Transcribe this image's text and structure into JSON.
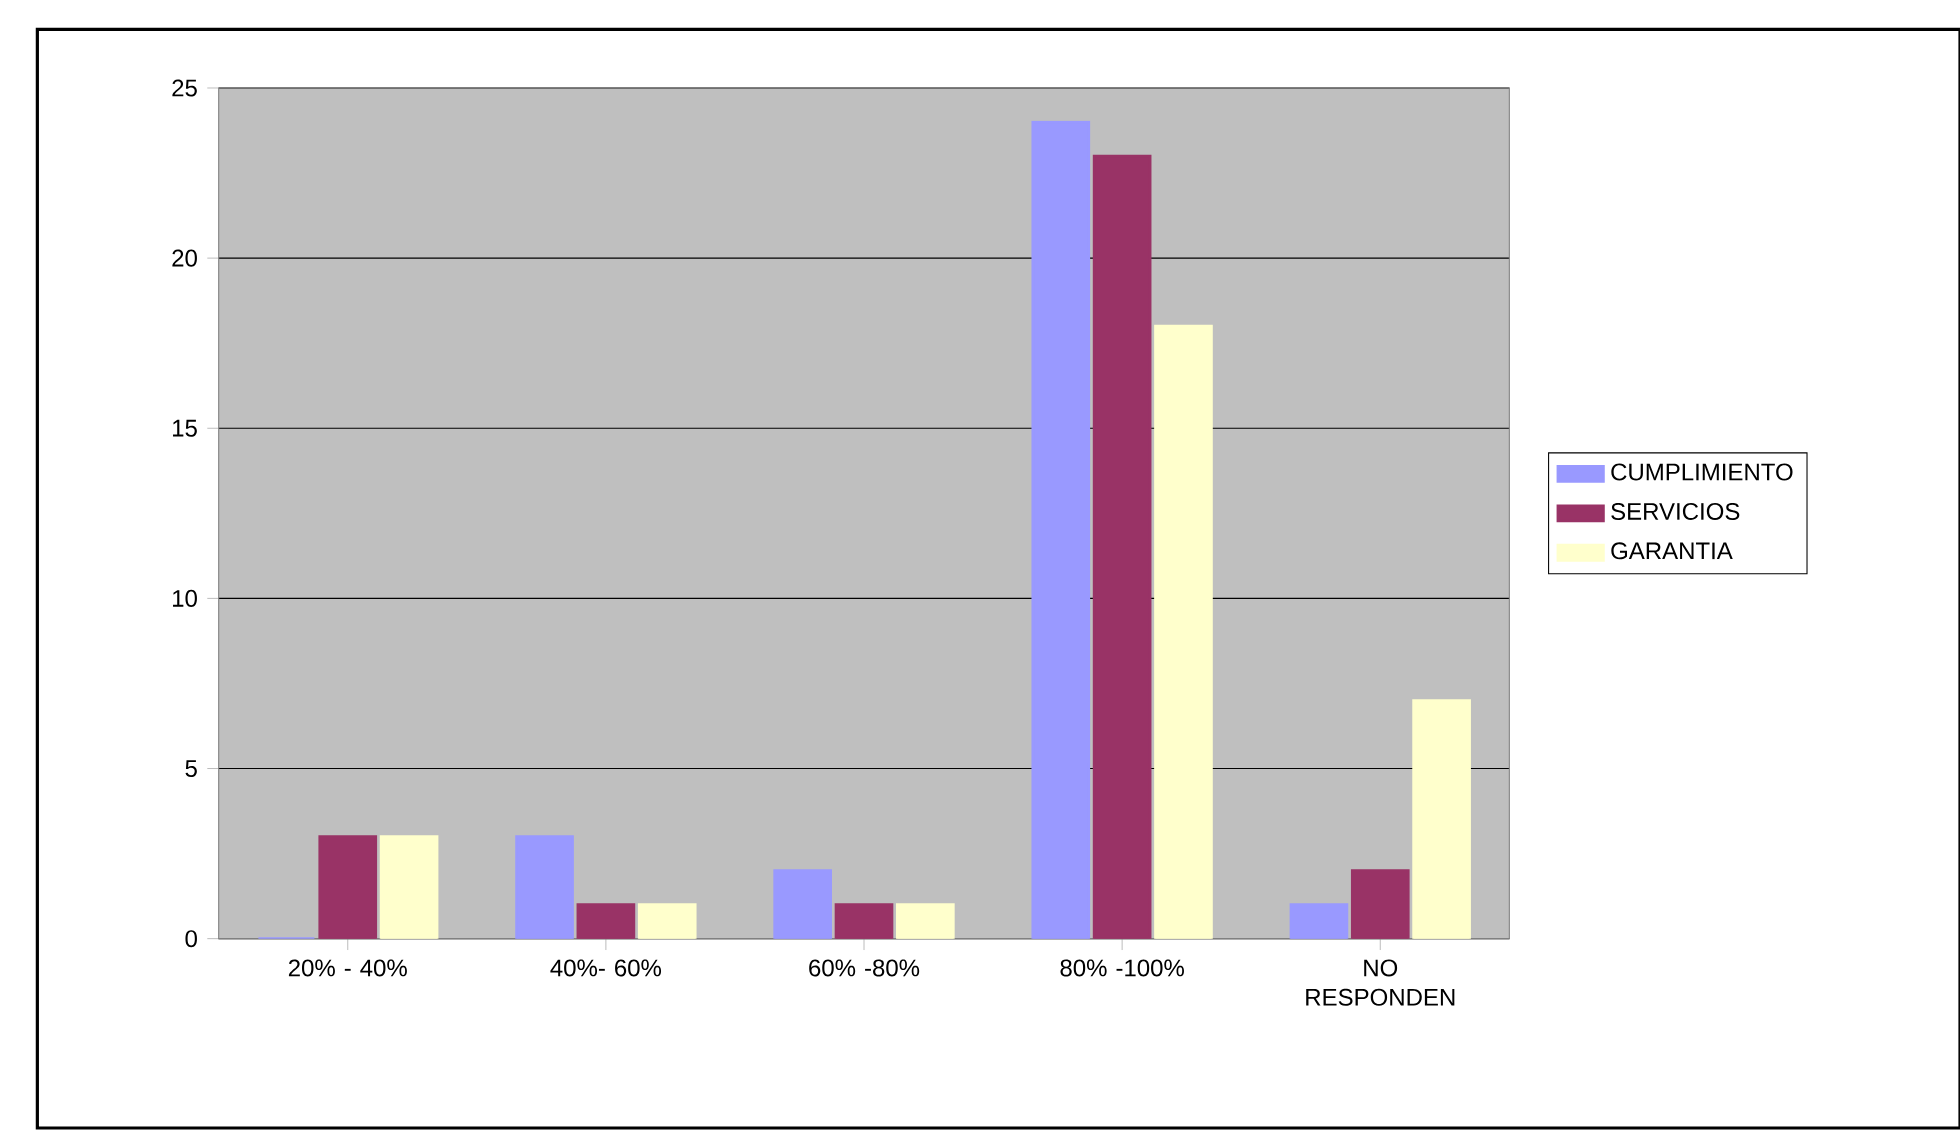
{
  "chart_data": {
    "type": "bar",
    "categories": [
      "20% - 40%",
      "40%- 60%",
      "60% -80%",
      "80% -100%",
      "NO RESPONDEN"
    ],
    "series": [
      {
        "name": "CUMPLIMIENTO",
        "color": "#9999ff",
        "values": [
          0,
          3,
          2,
          24,
          1
        ]
      },
      {
        "name": "SERVICIOS",
        "color": "#993366",
        "values": [
          3,
          1,
          1,
          23,
          2
        ]
      },
      {
        "name": "GARANTIA",
        "color": "#ffffcc",
        "values": [
          3,
          1,
          1,
          18,
          7
        ]
      }
    ],
    "ylim": [
      0,
      25
    ],
    "yticks": [
      0,
      5,
      10,
      15,
      20,
      25
    ],
    "grid": "y",
    "legend": "right"
  }
}
